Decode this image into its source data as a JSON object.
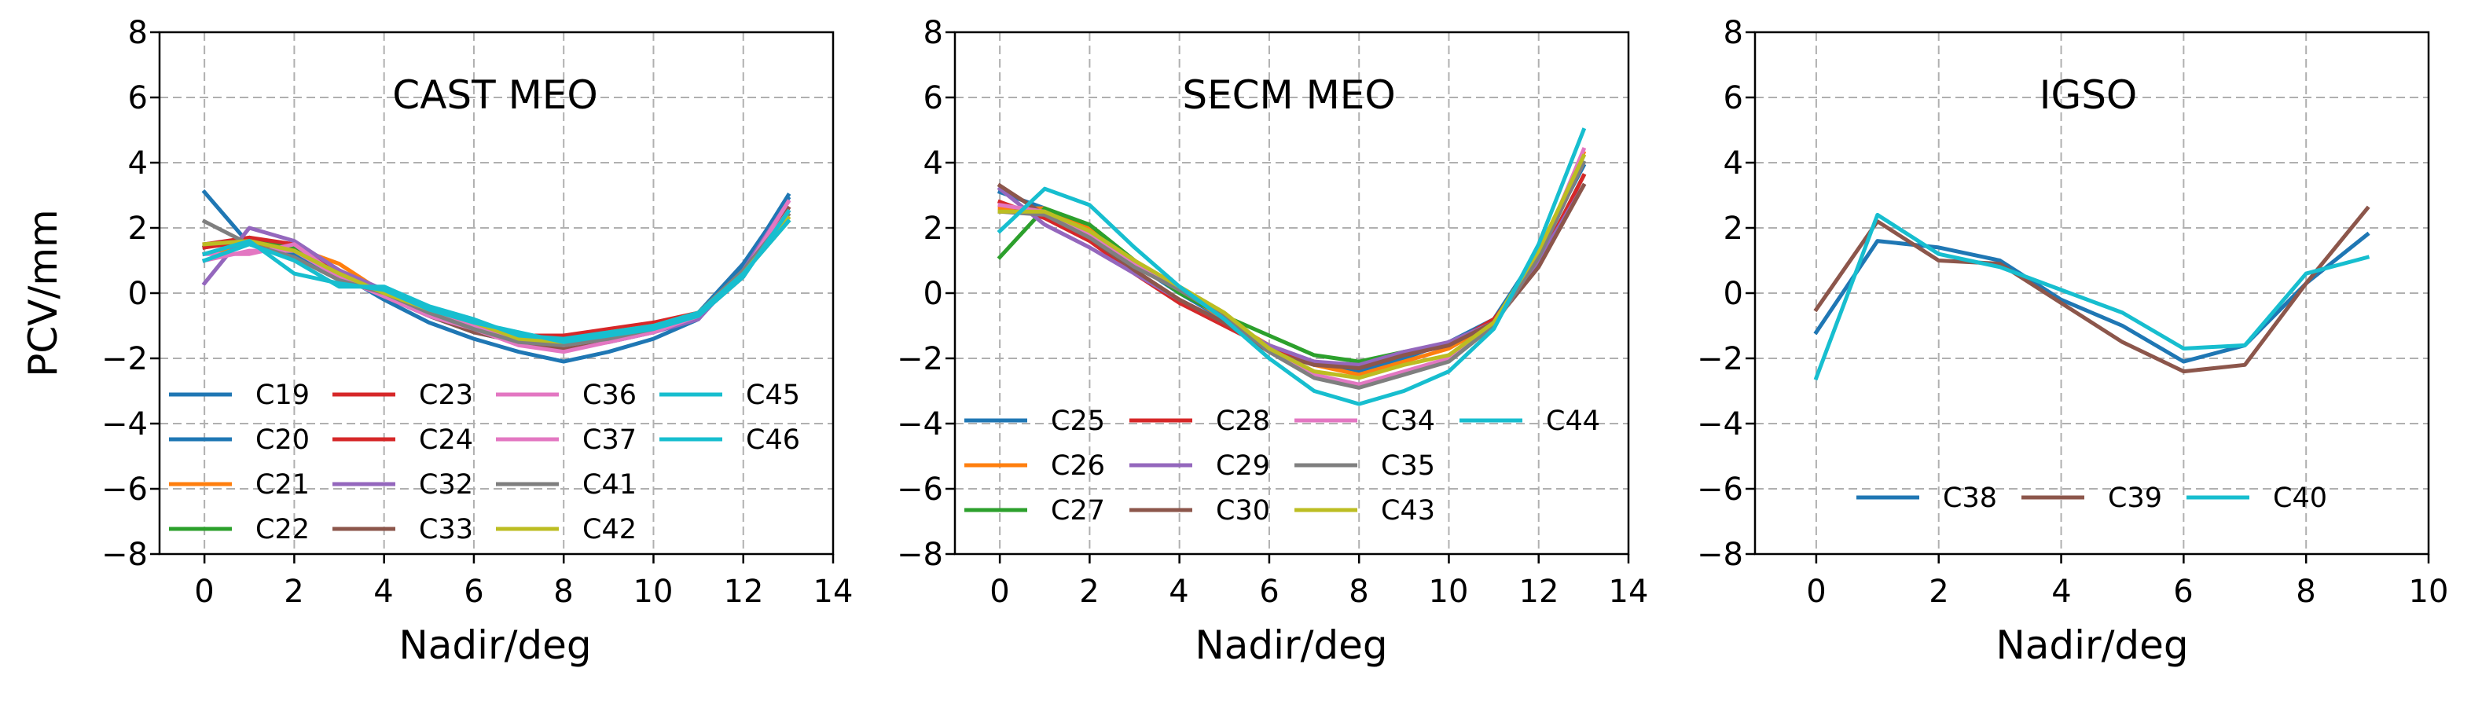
{
  "chart_data": [
    {
      "type": "line",
      "title": "CAST MEO",
      "xlabel": "Nadir/deg",
      "ylabel": "PCV/mm",
      "xlim": [
        -1,
        14
      ],
      "ylim": [
        -8,
        8
      ],
      "xticks": [
        "0",
        "2",
        "4",
        "6",
        "8",
        "10",
        "12",
        "14"
      ],
      "yticks": [
        "−8",
        "−6",
        "−4",
        "−2",
        "0",
        "2",
        "4",
        "6",
        "8"
      ],
      "grid": true,
      "legend_location": "lower-left",
      "x": [
        0,
        1,
        2,
        3,
        4,
        5,
        6,
        7,
        8,
        9,
        10,
        11,
        12,
        13
      ],
      "series": [
        {
          "name": "C19",
          "color": "#1f77b4",
          "values": [
            3.1,
            1.5,
            1.3,
            0.6,
            -0.2,
            -0.9,
            -1.4,
            -1.8,
            -2.1,
            -1.8,
            -1.4,
            -0.8,
            0.8,
            3.0
          ]
        },
        {
          "name": "C20",
          "color": "#1f77b4",
          "values": [
            1.4,
            1.7,
            1.2,
            0.5,
            -0.1,
            -0.7,
            -1.2,
            -1.5,
            -1.7,
            -1.5,
            -1.2,
            -0.6,
            0.9,
            2.9
          ]
        },
        {
          "name": "C21",
          "color": "#ff7f0e",
          "values": [
            1.2,
            1.5,
            1.4,
            0.9,
            0.0,
            -0.6,
            -1.1,
            -1.4,
            -1.6,
            -1.4,
            -1.1,
            -0.7,
            0.6,
            2.4
          ]
        },
        {
          "name": "C22",
          "color": "#2ca02c",
          "values": [
            1.4,
            1.7,
            1.4,
            0.6,
            0.0,
            -0.6,
            -1.0,
            -1.4,
            -1.5,
            -1.3,
            -1.0,
            -0.6,
            0.6,
            2.2
          ]
        },
        {
          "name": "C23",
          "color": "#d62728",
          "values": [
            1.5,
            1.7,
            1.5,
            0.7,
            0.0,
            -0.6,
            -0.9,
            -1.3,
            -1.3,
            -1.1,
            -0.9,
            -0.6,
            0.6,
            2.5
          ]
        },
        {
          "name": "C24",
          "color": "#d62728",
          "values": [
            1.4,
            1.6,
            1.3,
            0.6,
            0.0,
            -0.6,
            -1.1,
            -1.4,
            -1.5,
            -1.3,
            -1.0,
            -0.7,
            0.5,
            2.6
          ]
        },
        {
          "name": "C32",
          "color": "#9467bd",
          "values": [
            0.3,
            2.0,
            1.6,
            0.7,
            0.1,
            -0.5,
            -1.1,
            -1.5,
            -1.7,
            -1.5,
            -1.2,
            -0.8,
            0.7,
            2.8
          ]
        },
        {
          "name": "C33",
          "color": "#8c564b",
          "values": [
            1.5,
            1.6,
            1.3,
            0.6,
            -0.1,
            -0.7,
            -1.2,
            -1.5,
            -1.7,
            -1.5,
            -1.1,
            -0.7,
            0.6,
            2.6
          ]
        },
        {
          "name": "C36",
          "color": "#e377c2",
          "values": [
            1.2,
            1.2,
            1.5,
            0.5,
            -0.1,
            -0.7,
            -1.1,
            -1.6,
            -1.8,
            -1.5,
            -1.2,
            -0.7,
            0.6,
            2.8
          ]
        },
        {
          "name": "C37",
          "color": "#e377c2",
          "values": [
            1.0,
            1.3,
            1.3,
            0.5,
            -0.1,
            -0.6,
            -1.0,
            -1.4,
            -1.6,
            -1.4,
            -1.1,
            -0.7,
            0.6,
            2.5
          ]
        },
        {
          "name": "C41",
          "color": "#7f7f7f",
          "values": [
            2.2,
            1.5,
            1.1,
            0.4,
            0.0,
            -0.6,
            -1.1,
            -1.5,
            -1.6,
            -1.4,
            -1.1,
            -0.6,
            0.7,
            2.4
          ]
        },
        {
          "name": "C42",
          "color": "#bcbd22",
          "values": [
            1.5,
            1.6,
            1.3,
            0.6,
            0.0,
            -0.5,
            -0.9,
            -1.4,
            -1.5,
            -1.2,
            -1.0,
            -0.6,
            0.6,
            2.3
          ]
        },
        {
          "name": "C45",
          "color": "#17becf",
          "values": [
            1.0,
            1.5,
            1.0,
            0.2,
            0.2,
            -0.4,
            -0.8,
            -1.3,
            -1.4,
            -1.2,
            -1.0,
            -0.6,
            0.6,
            2.2
          ]
        },
        {
          "name": "C46",
          "color": "#17becf",
          "values": [
            1.2,
            1.6,
            0.6,
            0.3,
            0.1,
            -0.5,
            -0.9,
            -1.2,
            -1.5,
            -1.3,
            -1.1,
            -0.7,
            0.5,
            2.5
          ]
        }
      ]
    },
    {
      "type": "line",
      "title": "SECM MEO",
      "xlabel": "Nadir/deg",
      "ylabel": "",
      "xlim": [
        -1,
        14
      ],
      "ylim": [
        -8,
        8
      ],
      "xticks": [
        "0",
        "2",
        "4",
        "6",
        "8",
        "10",
        "12",
        "14"
      ],
      "yticks": [
        "−8",
        "−6",
        "−4",
        "−2",
        "0",
        "2",
        "4",
        "6",
        "8"
      ],
      "grid": true,
      "legend_location": "lower-center",
      "x": [
        0,
        1,
        2,
        3,
        4,
        5,
        6,
        7,
        8,
        9,
        10,
        11,
        12,
        13
      ],
      "series": [
        {
          "name": "C25",
          "color": "#1f77b4",
          "values": [
            3.1,
            2.6,
            1.9,
            0.9,
            0.0,
            -0.8,
            -1.7,
            -2.2,
            -2.4,
            -2.0,
            -1.5,
            -0.8,
            1.3,
            3.9
          ]
        },
        {
          "name": "C26",
          "color": "#ff7f0e",
          "values": [
            2.6,
            2.6,
            2.0,
            1.0,
            0.1,
            -0.8,
            -1.6,
            -2.2,
            -2.5,
            -2.1,
            -1.7,
            -0.9,
            1.2,
            4.3
          ]
        },
        {
          "name": "C27",
          "color": "#2ca02c",
          "values": [
            1.1,
            2.6,
            2.1,
            1.0,
            0.0,
            -0.7,
            -1.3,
            -1.9,
            -2.1,
            -1.8,
            -1.6,
            -0.9,
            0.9,
            3.6
          ]
        },
        {
          "name": "C28",
          "color": "#d62728",
          "values": [
            2.8,
            2.3,
            1.6,
            0.6,
            -0.3,
            -1.0,
            -1.7,
            -2.1,
            -2.3,
            -1.9,
            -1.6,
            -0.8,
            0.9,
            3.6
          ]
        },
        {
          "name": "C29",
          "color": "#9467bd",
          "values": [
            3.2,
            2.1,
            1.4,
            0.6,
            -0.2,
            -0.9,
            -1.6,
            -2.1,
            -2.2,
            -1.8,
            -1.5,
            -0.9,
            1.0,
            3.3
          ]
        },
        {
          "name": "C30",
          "color": "#8c564b",
          "values": [
            3.3,
            2.4,
            1.7,
            0.7,
            -0.2,
            -0.9,
            -1.8,
            -2.2,
            -2.3,
            -1.9,
            -1.6,
            -0.9,
            0.8,
            3.3
          ]
        },
        {
          "name": "C34",
          "color": "#e377c2",
          "values": [
            2.7,
            2.5,
            1.8,
            0.9,
            0.1,
            -0.7,
            -1.7,
            -2.5,
            -2.8,
            -2.4,
            -2.0,
            -1.0,
            1.1,
            4.4
          ]
        },
        {
          "name": "C35",
          "color": "#7f7f7f",
          "values": [
            2.5,
            2.4,
            1.7,
            0.8,
            0.1,
            -0.7,
            -1.8,
            -2.6,
            -2.9,
            -2.5,
            -2.1,
            -1.0,
            1.1,
            4.0
          ]
        },
        {
          "name": "C43",
          "color": "#bcbd22",
          "values": [
            2.5,
            2.5,
            1.9,
            1.0,
            0.2,
            -0.6,
            -1.7,
            -2.4,
            -2.6,
            -2.2,
            -1.9,
            -0.9,
            1.3,
            4.2
          ]
        },
        {
          "name": "C44",
          "color": "#17becf",
          "values": [
            1.9,
            3.2,
            2.7,
            1.4,
            0.2,
            -0.8,
            -2.0,
            -3.0,
            -3.4,
            -3.0,
            -2.4,
            -1.1,
            1.5,
            5.0
          ]
        }
      ]
    },
    {
      "type": "line",
      "title": "IGSO",
      "xlabel": "Nadir/deg",
      "ylabel": "",
      "xlim": [
        -1,
        10
      ],
      "ylim": [
        -8,
        8
      ],
      "xticks": [
        "0",
        "2",
        "4",
        "6",
        "8",
        "10"
      ],
      "yticks": [
        "−8",
        "−6",
        "−4",
        "−2",
        "0",
        "2",
        "4",
        "6",
        "8"
      ],
      "grid": true,
      "legend_location": "lower-center",
      "x": [
        0,
        1,
        2,
        3,
        4,
        5,
        6,
        7,
        8,
        9
      ],
      "series": [
        {
          "name": "C38",
          "color": "#1f77b4",
          "values": [
            -1.2,
            1.6,
            1.4,
            1.0,
            -0.2,
            -1.0,
            -2.1,
            -1.6,
            0.3,
            1.8
          ]
        },
        {
          "name": "C39",
          "color": "#8c564b",
          "values": [
            -0.5,
            2.2,
            1.0,
            0.9,
            -0.3,
            -1.5,
            -2.4,
            -2.2,
            0.3,
            2.6
          ]
        },
        {
          "name": "C40",
          "color": "#17becf",
          "values": [
            -2.6,
            2.4,
            1.2,
            0.8,
            0.1,
            -0.6,
            -1.7,
            -1.6,
            0.6,
            1.1
          ]
        }
      ]
    }
  ]
}
